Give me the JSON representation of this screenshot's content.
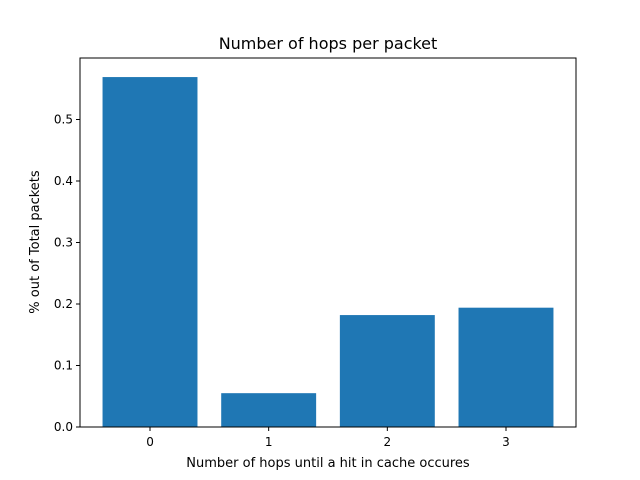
{
  "chart_data": {
    "type": "bar",
    "title": "Number of hops per packet",
    "xlabel": "Number of hops until a hit in cache occures",
    "ylabel": "% out of Total packets",
    "categories": [
      "0",
      "1",
      "2",
      "3"
    ],
    "values": [
      0.569,
      0.055,
      0.182,
      0.194
    ],
    "ylim": [
      0,
      0.6
    ],
    "yticks": [
      "0.0",
      "0.1",
      "0.2",
      "0.3",
      "0.4",
      "0.5"
    ],
    "grid": false,
    "bar_color": "#1f77b4"
  }
}
